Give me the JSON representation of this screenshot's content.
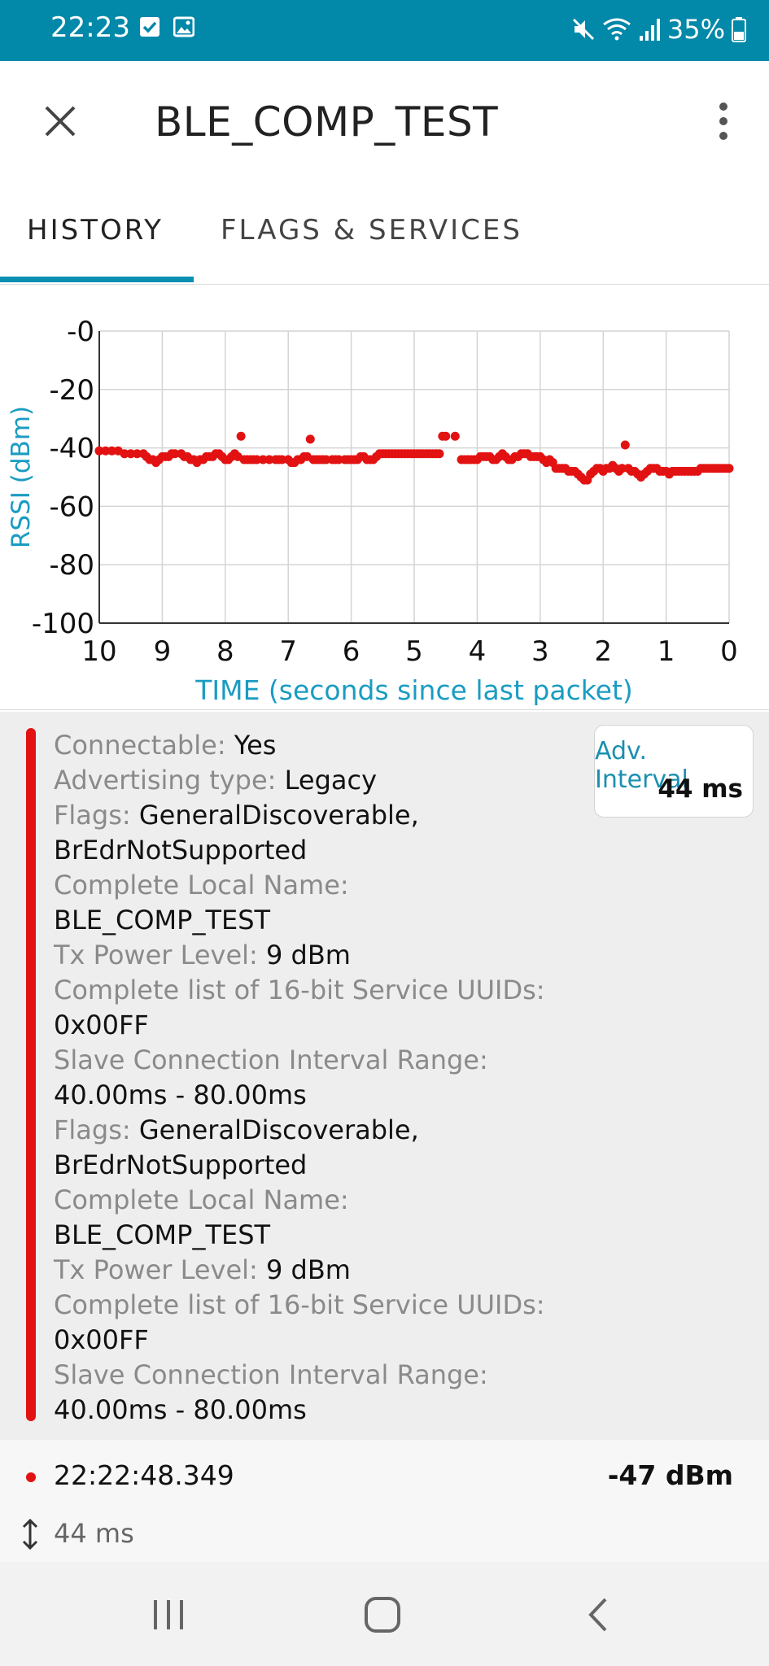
{
  "status_bar": {
    "time": "22:23",
    "battery": "35%",
    "icons": [
      "checkbox-icon",
      "image-icon",
      "mute-icon",
      "wifi-icon",
      "signal-icon",
      "battery-icon"
    ]
  },
  "app_bar": {
    "title": "BLE_COMP_TEST",
    "close_icon": "close-icon",
    "menu_icon": "more-vert-icon"
  },
  "tabs": [
    {
      "label": "HISTORY",
      "active": true
    },
    {
      "label": "FLAGS & SERVICES",
      "active": false
    }
  ],
  "chart_data": {
    "type": "scatter",
    "xlabel": "TIME (seconds since last packet)",
    "ylabel": "RSSI (dBm)",
    "xlim": [
      10,
      0
    ],
    "ylim": [
      -100,
      0
    ],
    "x_ticks": [
      "10",
      "9",
      "8",
      "7",
      "6",
      "5",
      "4",
      "3",
      "2",
      "1",
      "0"
    ],
    "y_ticks": [
      "-0",
      "-20",
      "-40",
      "-60",
      "-80",
      "-100"
    ],
    "grid": true,
    "color": "#e31212",
    "points": [
      [
        10.0,
        -41
      ],
      [
        9.9,
        -41
      ],
      [
        9.8,
        -41
      ],
      [
        9.7,
        -41
      ],
      [
        9.6,
        -42
      ],
      [
        9.5,
        -42
      ],
      [
        9.4,
        -42
      ],
      [
        9.3,
        -42
      ],
      [
        9.25,
        -43
      ],
      [
        9.2,
        -44
      ],
      [
        9.15,
        -44
      ],
      [
        9.1,
        -45
      ],
      [
        9.05,
        -44
      ],
      [
        9.0,
        -43
      ],
      [
        8.95,
        -43
      ],
      [
        8.9,
        -43
      ],
      [
        8.85,
        -42
      ],
      [
        8.8,
        -42
      ],
      [
        8.7,
        -42
      ],
      [
        8.65,
        -43
      ],
      [
        8.6,
        -43
      ],
      [
        8.55,
        -44
      ],
      [
        8.5,
        -44
      ],
      [
        8.45,
        -45
      ],
      [
        8.4,
        -44
      ],
      [
        8.35,
        -44
      ],
      [
        8.3,
        -43
      ],
      [
        8.25,
        -43
      ],
      [
        8.2,
        -43
      ],
      [
        8.15,
        -42
      ],
      [
        8.1,
        -42
      ],
      [
        8.05,
        -43
      ],
      [
        8.0,
        -44
      ],
      [
        7.95,
        -44
      ],
      [
        7.9,
        -43
      ],
      [
        7.85,
        -42
      ],
      [
        7.8,
        -43
      ],
      [
        7.75,
        -36
      ],
      [
        7.7,
        -44
      ],
      [
        7.65,
        -44
      ],
      [
        7.6,
        -44
      ],
      [
        7.55,
        -44
      ],
      [
        7.5,
        -44
      ],
      [
        7.4,
        -44
      ],
      [
        7.3,
        -44
      ],
      [
        7.2,
        -44
      ],
      [
        7.15,
        -44
      ],
      [
        7.1,
        -44
      ],
      [
        7.0,
        -44
      ],
      [
        6.95,
        -45
      ],
      [
        6.9,
        -45
      ],
      [
        6.85,
        -44
      ],
      [
        6.8,
        -44
      ],
      [
        6.75,
        -43
      ],
      [
        6.7,
        -43
      ],
      [
        6.65,
        -37
      ],
      [
        6.6,
        -44
      ],
      [
        6.55,
        -44
      ],
      [
        6.5,
        -44
      ],
      [
        6.45,
        -44
      ],
      [
        6.4,
        -44
      ],
      [
        6.3,
        -44
      ],
      [
        6.25,
        -44
      ],
      [
        6.2,
        -44
      ],
      [
        6.1,
        -44
      ],
      [
        6.05,
        -44
      ],
      [
        6.0,
        -44
      ],
      [
        5.95,
        -44
      ],
      [
        5.9,
        -44
      ],
      [
        5.85,
        -43
      ],
      [
        5.8,
        -43
      ],
      [
        5.75,
        -44
      ],
      [
        5.7,
        -44
      ],
      [
        5.65,
        -44
      ],
      [
        5.6,
        -43
      ],
      [
        5.55,
        -42
      ],
      [
        5.5,
        -42
      ],
      [
        5.45,
        -42
      ],
      [
        5.4,
        -42
      ],
      [
        5.35,
        -42
      ],
      [
        5.3,
        -42
      ],
      [
        5.25,
        -42
      ],
      [
        5.2,
        -42
      ],
      [
        5.15,
        -42
      ],
      [
        5.1,
        -42
      ],
      [
        5.05,
        -42
      ],
      [
        5.0,
        -42
      ],
      [
        4.95,
        -42
      ],
      [
        4.9,
        -42
      ],
      [
        4.85,
        -42
      ],
      [
        4.8,
        -42
      ],
      [
        4.75,
        -42
      ],
      [
        4.7,
        -42
      ],
      [
        4.65,
        -42
      ],
      [
        4.6,
        -42
      ],
      [
        4.55,
        -36
      ],
      [
        4.5,
        -36
      ],
      [
        4.35,
        -36
      ],
      [
        4.25,
        -44
      ],
      [
        4.2,
        -44
      ],
      [
        4.15,
        -44
      ],
      [
        4.1,
        -44
      ],
      [
        4.05,
        -44
      ],
      [
        4.0,
        -44
      ],
      [
        3.95,
        -43
      ],
      [
        3.9,
        -43
      ],
      [
        3.85,
        -43
      ],
      [
        3.8,
        -43
      ],
      [
        3.75,
        -44
      ],
      [
        3.7,
        -44
      ],
      [
        3.65,
        -43
      ],
      [
        3.6,
        -42
      ],
      [
        3.55,
        -43
      ],
      [
        3.5,
        -44
      ],
      [
        3.45,
        -44
      ],
      [
        3.4,
        -43
      ],
      [
        3.35,
        -43
      ],
      [
        3.3,
        -42
      ],
      [
        3.25,
        -42
      ],
      [
        3.2,
        -42
      ],
      [
        3.15,
        -43
      ],
      [
        3.1,
        -43
      ],
      [
        3.05,
        -43
      ],
      [
        3.0,
        -43
      ],
      [
        2.95,
        -44
      ],
      [
        2.9,
        -45
      ],
      [
        2.85,
        -44
      ],
      [
        2.8,
        -45
      ],
      [
        2.75,
        -47
      ],
      [
        2.7,
        -47
      ],
      [
        2.65,
        -47
      ],
      [
        2.6,
        -47
      ],
      [
        2.55,
        -48
      ],
      [
        2.5,
        -48
      ],
      [
        2.45,
        -48
      ],
      [
        2.4,
        -49
      ],
      [
        2.35,
        -50
      ],
      [
        2.3,
        -51
      ],
      [
        2.25,
        -51
      ],
      [
        2.2,
        -49
      ],
      [
        2.15,
        -48
      ],
      [
        2.1,
        -47
      ],
      [
        2.05,
        -47
      ],
      [
        2.0,
        -48
      ],
      [
        1.95,
        -47
      ],
      [
        1.9,
        -47
      ],
      [
        1.85,
        -46
      ],
      [
        1.8,
        -47
      ],
      [
        1.75,
        -48
      ],
      [
        1.7,
        -47
      ],
      [
        1.65,
        -39
      ],
      [
        1.6,
        -47
      ],
      [
        1.55,
        -48
      ],
      [
        1.5,
        -48
      ],
      [
        1.45,
        -49
      ],
      [
        1.4,
        -50
      ],
      [
        1.35,
        -49
      ],
      [
        1.3,
        -48
      ],
      [
        1.25,
        -47
      ],
      [
        1.2,
        -47
      ],
      [
        1.15,
        -47
      ],
      [
        1.1,
        -48
      ],
      [
        1.05,
        -48
      ],
      [
        1.0,
        -48
      ],
      [
        0.95,
        -49
      ],
      [
        0.9,
        -48
      ],
      [
        0.85,
        -48
      ],
      [
        0.8,
        -48
      ],
      [
        0.75,
        -48
      ],
      [
        0.7,
        -48
      ],
      [
        0.65,
        -48
      ],
      [
        0.6,
        -48
      ],
      [
        0.55,
        -48
      ],
      [
        0.5,
        -48
      ],
      [
        0.45,
        -47
      ],
      [
        0.4,
        -47
      ],
      [
        0.35,
        -47
      ],
      [
        0.3,
        -47
      ],
      [
        0.25,
        -47
      ],
      [
        0.2,
        -47
      ],
      [
        0.15,
        -47
      ],
      [
        0.1,
        -47
      ],
      [
        0.05,
        -47
      ],
      [
        0.0,
        -47
      ]
    ]
  },
  "packet": {
    "lines": [
      {
        "key": "Connectable: ",
        "value": "Yes"
      },
      {
        "key": "Advertising type: ",
        "value": "Legacy"
      },
      {
        "key": "Flags: ",
        "value": "GeneralDiscoverable,"
      },
      {
        "key": "",
        "value": "BrEdrNotSupported"
      },
      {
        "key": "Complete Local Name:",
        "value": ""
      },
      {
        "key": "",
        "value": "BLE_COMP_TEST"
      },
      {
        "key": "Tx Power Level: ",
        "value": "9 dBm"
      },
      {
        "key": "Complete list of 16-bit Service UUIDs:",
        "value": ""
      },
      {
        "key": "",
        "value": "0x00FF"
      },
      {
        "key": "Slave Connection Interval Range:",
        "value": ""
      },
      {
        "key": "",
        "value": "40.00ms - 80.00ms"
      },
      {
        "key": "Flags: ",
        "value": "GeneralDiscoverable,"
      },
      {
        "key": "",
        "value": "BrEdrNotSupported"
      },
      {
        "key": "Complete Local Name:",
        "value": ""
      },
      {
        "key": "",
        "value": "BLE_COMP_TEST"
      },
      {
        "key": "Tx Power Level: ",
        "value": "9 dBm"
      },
      {
        "key": "Complete list of 16-bit Service UUIDs:",
        "value": ""
      },
      {
        "key": "",
        "value": "0x00FF"
      },
      {
        "key": "Slave Connection Interval Range:",
        "value": ""
      },
      {
        "key": "",
        "value": "40.00ms - 80.00ms"
      }
    ],
    "adv_interval_label": "Adv. Interval",
    "adv_interval_value": "44 ms",
    "timestamp": "22:22:48.349",
    "rssi": "-47 dBm",
    "interval": "44 ms"
  },
  "nav_bar": {
    "icons": [
      "recent-apps-icon",
      "home-icon",
      "back-icon"
    ]
  }
}
